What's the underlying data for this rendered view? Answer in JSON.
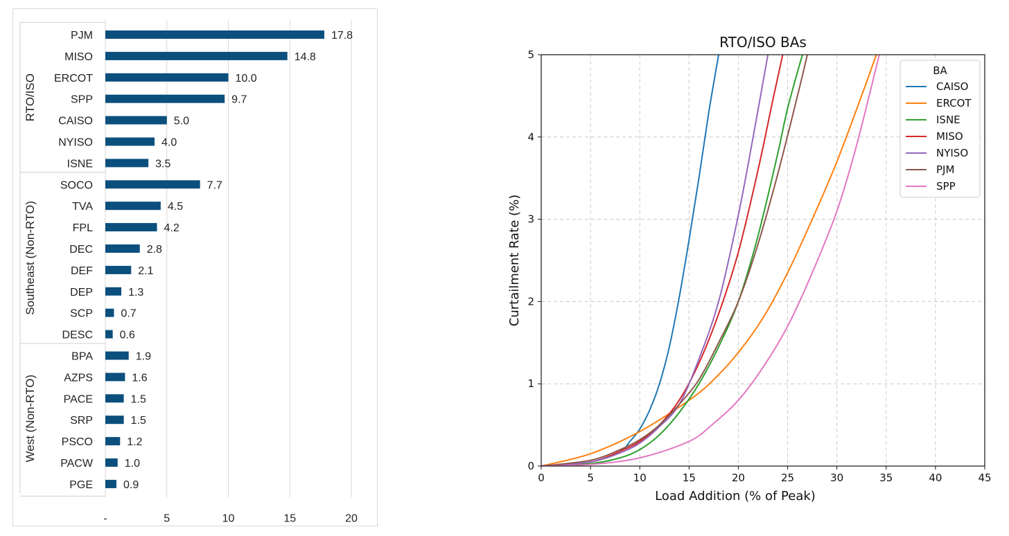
{
  "chart_data": [
    {
      "type": "bar",
      "orientation": "horizontal",
      "groups": [
        {
          "label": "RTO/ISO",
          "categories": [
            "PJM",
            "MISO",
            "ERCOT",
            "SPP",
            "CAISO",
            "NYISO",
            "ISNE"
          ],
          "values": [
            17.8,
            14.8,
            10.0,
            9.7,
            5.0,
            4.0,
            3.5
          ],
          "value_labels": [
            "17.8",
            "14.8",
            "10.0",
            "9.7",
            "5.0",
            "4.0",
            "3.5"
          ]
        },
        {
          "label": "Southeast (Non-RTO)",
          "categories": [
            "SOCO",
            "TVA",
            "FPL",
            "DEC",
            "DEF",
            "DEP",
            "SCP",
            "DESC"
          ],
          "values": [
            7.7,
            4.5,
            4.2,
            2.8,
            2.1,
            1.3,
            0.7,
            0.6
          ],
          "value_labels": [
            "7.7",
            "4.5",
            "4.2",
            "2.8",
            "2.1",
            "1.3",
            "0.7",
            "0.6"
          ]
        },
        {
          "label": "West (Non-RTO)",
          "categories": [
            "BPA",
            "AZPS",
            "PACE",
            "SRP",
            "PSCO",
            "PACW",
            "PGE"
          ],
          "values": [
            1.9,
            1.6,
            1.5,
            1.5,
            1.2,
            1.0,
            0.9
          ],
          "value_labels": [
            "1.9",
            "1.6",
            "1.5",
            "1.5",
            "1.2",
            "1.0",
            "0.9"
          ]
        }
      ],
      "xlim": [
        0,
        20
      ],
      "xticks": [
        0,
        5,
        10,
        15,
        20
      ],
      "xtick_labels": [
        "-",
        "5",
        "10",
        "15",
        "20"
      ],
      "bar_color": "#0b4f7d",
      "grid": true
    },
    {
      "type": "line",
      "title": "RTO/ISO BAs",
      "xlabel": "Load Addition (% of Peak)",
      "ylabel": "Curtailment Rate (%)",
      "xlim": [
        0,
        45
      ],
      "ylim": [
        0,
        5
      ],
      "xticks": [
        0,
        5,
        10,
        15,
        20,
        25,
        30,
        35,
        40,
        45
      ],
      "yticks": [
        0,
        1,
        2,
        3,
        4,
        5
      ],
      "grid": true,
      "legend_title": "BA",
      "legend_position": "top-right",
      "series": [
        {
          "name": "CAISO",
          "color": "#1f77b4",
          "x": [
            0,
            5,
            8,
            9,
            10,
            11,
            12,
            13,
            14,
            15,
            16,
            17,
            18
          ],
          "y": [
            0,
            0.05,
            0.18,
            0.3,
            0.45,
            0.68,
            1.0,
            1.45,
            2.05,
            2.75,
            3.5,
            4.3,
            5.0
          ]
        },
        {
          "name": "ERCOT",
          "color": "#ff7f0e",
          "x": [
            0,
            5,
            10,
            15,
            17.5,
            20,
            22.5,
            25,
            27.5,
            30,
            32.5,
            34
          ],
          "y": [
            0,
            0.15,
            0.42,
            0.8,
            1.05,
            1.38,
            1.8,
            2.35,
            3.0,
            3.7,
            4.5,
            5.0
          ]
        },
        {
          "name": "ISNE",
          "color": "#2ca02c",
          "x": [
            0,
            5,
            8,
            10,
            12,
            14,
            16,
            18,
            20,
            22,
            24,
            25,
            26.5
          ],
          "y": [
            0,
            0.03,
            0.1,
            0.2,
            0.38,
            0.65,
            1.0,
            1.45,
            2.0,
            2.8,
            3.8,
            4.35,
            5.0
          ]
        },
        {
          "name": "MISO",
          "color": "#d62728",
          "x": [
            0,
            5,
            8,
            10,
            12,
            14,
            16,
            18,
            20,
            22,
            23.5,
            24.5
          ],
          "y": [
            0,
            0.05,
            0.18,
            0.3,
            0.5,
            0.8,
            1.25,
            1.85,
            2.6,
            3.6,
            4.45,
            5.0
          ]
        },
        {
          "name": "NYISO",
          "color": "#9467bd",
          "x": [
            0,
            5,
            8,
            10,
            12,
            14,
            16,
            18,
            20,
            21.5,
            23
          ],
          "y": [
            0,
            0.05,
            0.16,
            0.28,
            0.48,
            0.75,
            1.3,
            2.0,
            3.05,
            4.0,
            5.0
          ]
        },
        {
          "name": "PJM",
          "color": "#8c564b",
          "x": [
            0,
            5,
            8,
            10,
            12,
            14,
            16,
            18,
            20,
            22,
            24,
            26,
            27
          ],
          "y": [
            0,
            0.07,
            0.2,
            0.32,
            0.5,
            0.75,
            1.05,
            1.5,
            2.0,
            2.7,
            3.55,
            4.5,
            5.0
          ]
        },
        {
          "name": "SPP",
          "color": "#e377c2",
          "x": [
            0,
            5,
            10,
            15,
            17.5,
            20,
            22.5,
            25,
            27.5,
            30,
            32,
            34.3
          ],
          "y": [
            0,
            0.02,
            0.1,
            0.3,
            0.52,
            0.8,
            1.2,
            1.7,
            2.35,
            3.1,
            3.9,
            5.0
          ]
        }
      ]
    }
  ]
}
